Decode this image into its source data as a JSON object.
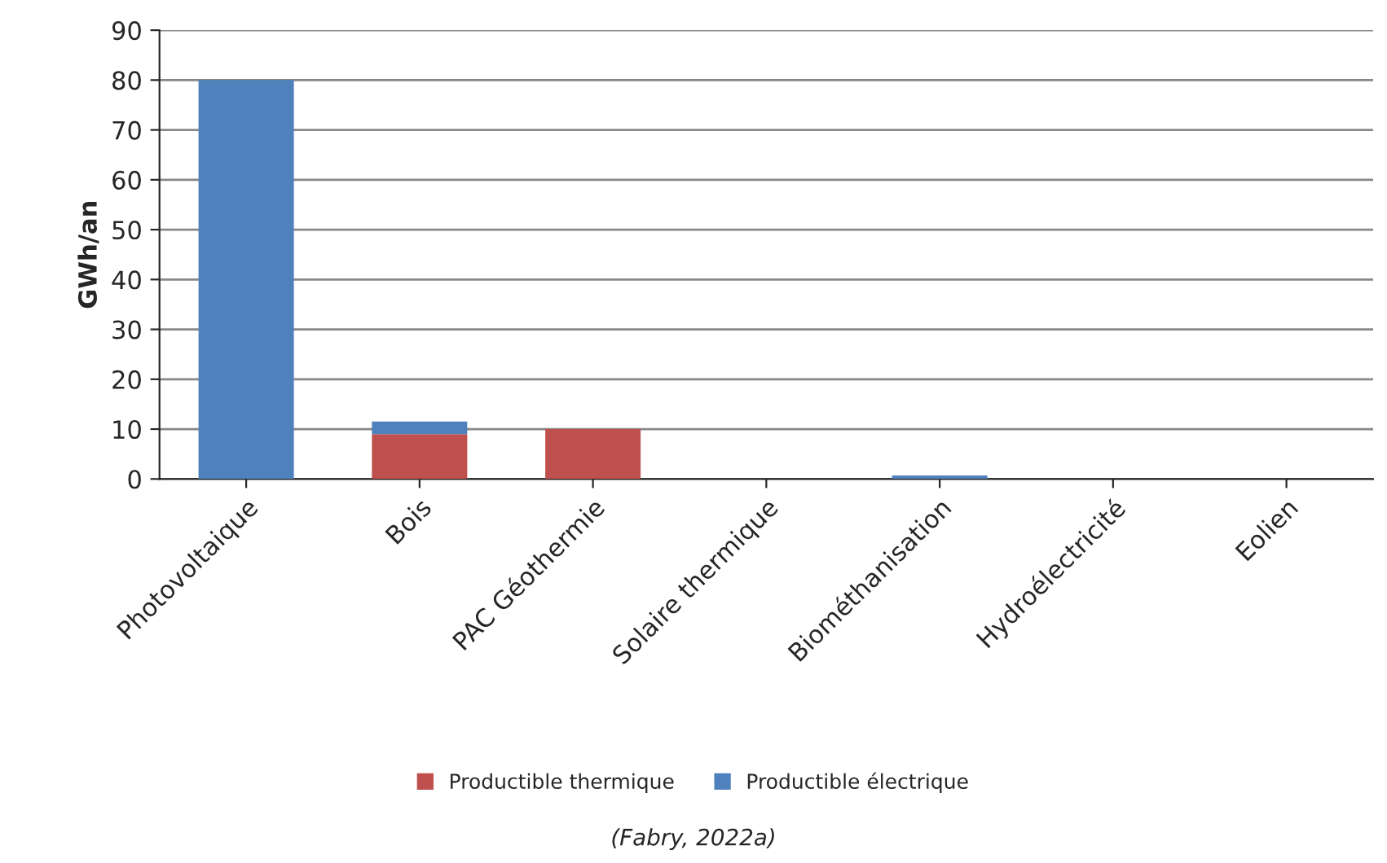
{
  "chart_data": {
    "type": "bar",
    "stacked": true,
    "ylabel": "GWh/an",
    "categories": [
      "Photovoltaique",
      "Bois",
      "PAC Géothermie",
      "Solaire thermique",
      "Biométhanisation",
      "Hydroélectricité",
      "Eolien"
    ],
    "series": [
      {
        "name": "Productible thermique",
        "color": "#c0504d",
        "values": [
          0,
          9,
          10,
          0,
          0,
          0,
          0
        ]
      },
      {
        "name": "Productible électrique",
        "color": "#4f81bd",
        "values": [
          80,
          2.5,
          0,
          0,
          0.7,
          0,
          0
        ]
      }
    ],
    "ylim": [
      0,
      90
    ],
    "yticks": [
      0,
      10,
      20,
      30,
      40,
      50,
      60,
      70,
      80,
      90
    ],
    "grid": "y",
    "legend": "bottom",
    "annotations": [
      "(Fabry, 2022a)"
    ]
  }
}
